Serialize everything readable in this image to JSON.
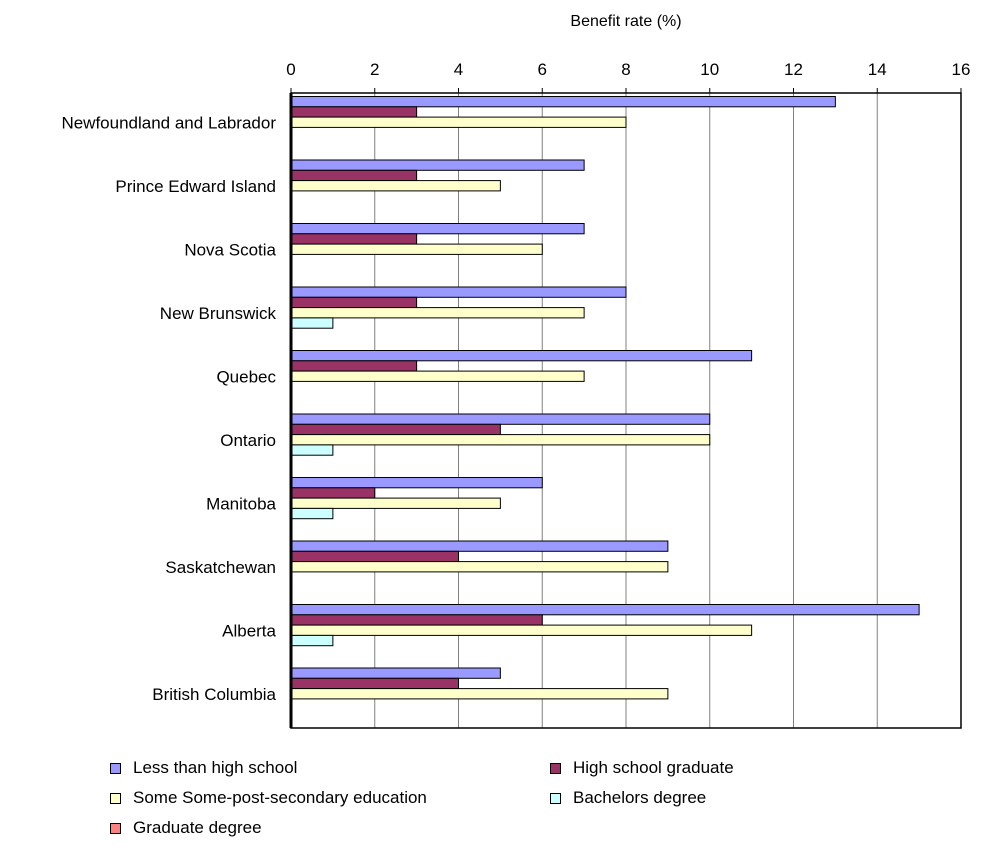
{
  "chart_data": {
    "type": "bar",
    "orientation": "horizontal",
    "title": "",
    "xlabel": "Benefit rate (%)",
    "ylabel": "",
    "xlim": [
      0,
      16
    ],
    "x_ticks": [
      "0",
      "2",
      "4",
      "6",
      "8",
      "10",
      "12",
      "14",
      "16"
    ],
    "grid": "vertical",
    "legend_position": "bottom",
    "categories": [
      "Newfoundland and Labrador",
      "Prince Edward Island",
      "Nova Scotia",
      "New Brunswick",
      "Quebec",
      "Ontario",
      "Manitoba",
      "Saskatchewan",
      "Alberta",
      "British Columbia"
    ],
    "series": [
      {
        "name": "Less than high school",
        "color": "#9999ff",
        "values": [
          13,
          7,
          7,
          8,
          11,
          10,
          6,
          9,
          15,
          5
        ]
      },
      {
        "name": "High school graduate",
        "color": "#993366",
        "values": [
          3,
          3,
          3,
          3,
          3,
          5,
          2,
          4,
          6,
          4
        ]
      },
      {
        "name": "Some Some-post-secondary education",
        "color": "#ffffcc",
        "values": [
          8,
          5,
          6,
          7,
          7,
          10,
          5,
          9,
          11,
          9
        ]
      },
      {
        "name": "Bachelors degree",
        "color": "#ccffff",
        "values": [
          0,
          0,
          0,
          1,
          0,
          1,
          1,
          0,
          1,
          0
        ]
      },
      {
        "name": "Graduate degree",
        "color": "#ff8080",
        "values": [
          0,
          0,
          0,
          0,
          0,
          0,
          0,
          0,
          0,
          0
        ]
      }
    ]
  }
}
